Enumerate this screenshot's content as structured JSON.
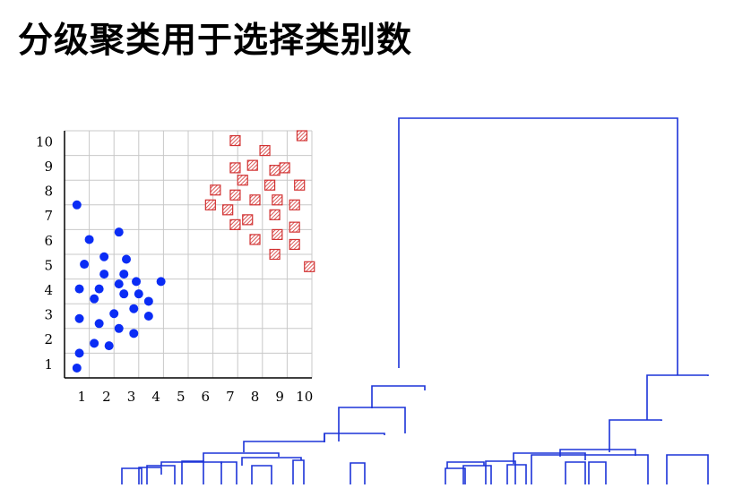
{
  "title": "分级聚类用于选择类别数",
  "chart_data": {
    "type": "scatter",
    "title": "",
    "xlabel": "",
    "ylabel": "",
    "xlim": [
      0,
      10
    ],
    "ylim": [
      0,
      10
    ],
    "x_ticks": [
      "1",
      "2",
      "3",
      "4",
      "5",
      "6",
      "7",
      "8",
      "9",
      "10"
    ],
    "y_ticks": [
      "1",
      "2",
      "3",
      "4",
      "5",
      "6",
      "7",
      "8",
      "9",
      "10"
    ],
    "grid": true,
    "series": [
      {
        "marker": "circle",
        "color": "#0a2cf5",
        "points": [
          [
            0.5,
            7.0
          ],
          [
            1.0,
            5.6
          ],
          [
            0.8,
            4.6
          ],
          [
            0.6,
            3.6
          ],
          [
            1.6,
            4.9
          ],
          [
            2.2,
            5.9
          ],
          [
            1.6,
            4.2
          ],
          [
            2.5,
            4.8
          ],
          [
            2.4,
            4.2
          ],
          [
            1.4,
            3.6
          ],
          [
            1.2,
            3.2
          ],
          [
            2.2,
            3.8
          ],
          [
            2.4,
            3.4
          ],
          [
            2.9,
            3.9
          ],
          [
            3.0,
            3.4
          ],
          [
            3.9,
            3.9
          ],
          [
            3.4,
            3.1
          ],
          [
            2.8,
            2.8
          ],
          [
            2.0,
            2.6
          ],
          [
            3.4,
            2.5
          ],
          [
            0.6,
            2.4
          ],
          [
            1.4,
            2.2
          ],
          [
            2.2,
            2.0
          ],
          [
            2.8,
            1.8
          ],
          [
            1.2,
            1.4
          ],
          [
            1.8,
            1.3
          ],
          [
            0.6,
            1.0
          ],
          [
            0.5,
            0.4
          ]
        ]
      },
      {
        "marker": "hatched-square",
        "color": "#d23232",
        "points": [
          [
            6.9,
            9.6
          ],
          [
            9.6,
            9.8
          ],
          [
            8.1,
            9.2
          ],
          [
            6.9,
            8.5
          ],
          [
            7.6,
            8.6
          ],
          [
            8.5,
            8.4
          ],
          [
            8.9,
            8.5
          ],
          [
            7.2,
            8.0
          ],
          [
            8.3,
            7.8
          ],
          [
            9.5,
            7.8
          ],
          [
            6.1,
            7.6
          ],
          [
            6.9,
            7.4
          ],
          [
            7.7,
            7.2
          ],
          [
            8.6,
            7.2
          ],
          [
            9.3,
            7.0
          ],
          [
            5.9,
            7.0
          ],
          [
            6.6,
            6.8
          ],
          [
            8.5,
            6.6
          ],
          [
            7.4,
            6.4
          ],
          [
            6.9,
            6.2
          ],
          [
            9.3,
            6.1
          ],
          [
            7.7,
            5.6
          ],
          [
            8.6,
            5.8
          ],
          [
            9.3,
            5.4
          ],
          [
            8.5,
            5.0
          ],
          [
            9.9,
            4.5
          ]
        ]
      }
    ]
  },
  "dendrogram": {
    "style_color": "#1c33d8",
    "clusters": 2
  }
}
